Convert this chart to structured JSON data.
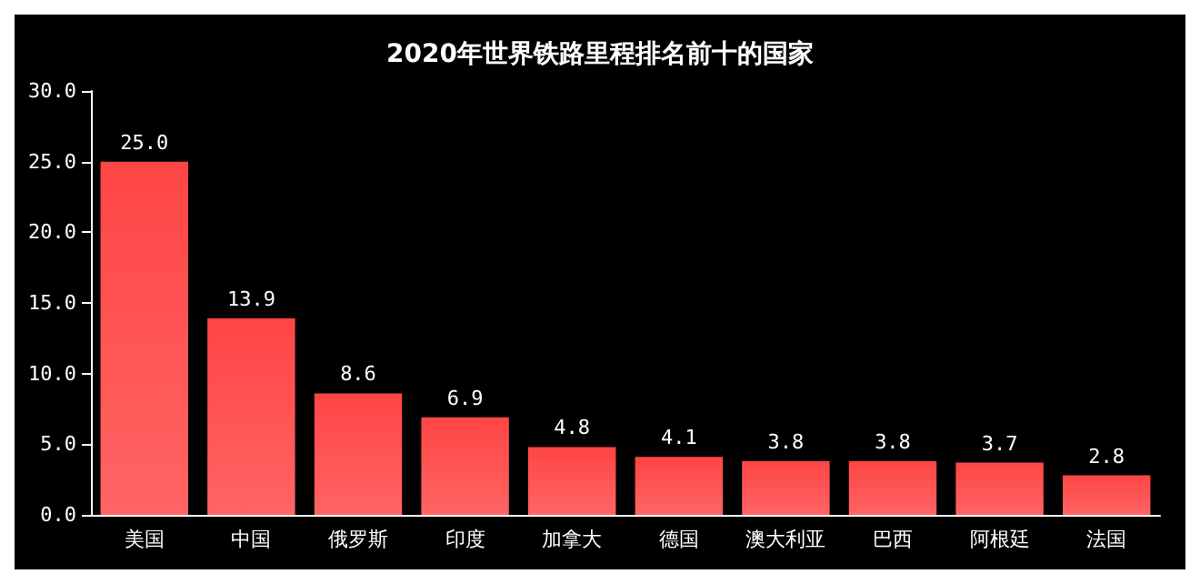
{
  "chart_data": {
    "type": "bar",
    "title": "2020年世界铁路里程排名前十的国家",
    "categories": [
      "美国",
      "中国",
      "俄罗斯",
      "印度",
      "加拿大",
      "德国",
      "澳大利亚",
      "巴西",
      "阿根廷",
      "法国"
    ],
    "values": [
      25.0,
      13.9,
      8.6,
      6.9,
      4.8,
      4.1,
      3.8,
      3.8,
      3.7,
      2.8
    ],
    "value_labels": [
      "25.0",
      "13.9",
      "8.6",
      "6.9",
      "4.8",
      "4.1",
      "3.8",
      "3.8",
      "3.7",
      "2.8"
    ],
    "color": "#ff4545",
    "ylim": [
      0,
      30
    ],
    "yticks": [
      {
        "value": 0,
        "label": "0.0"
      },
      {
        "value": 5,
        "label": "5.0"
      },
      {
        "value": 10,
        "label": "10.0"
      },
      {
        "value": 15,
        "label": "15.0"
      },
      {
        "value": 20,
        "label": "20.0"
      },
      {
        "value": 25,
        "label": "25.0"
      },
      {
        "value": 30,
        "label": "30.0"
      }
    ],
    "grid": false
  }
}
